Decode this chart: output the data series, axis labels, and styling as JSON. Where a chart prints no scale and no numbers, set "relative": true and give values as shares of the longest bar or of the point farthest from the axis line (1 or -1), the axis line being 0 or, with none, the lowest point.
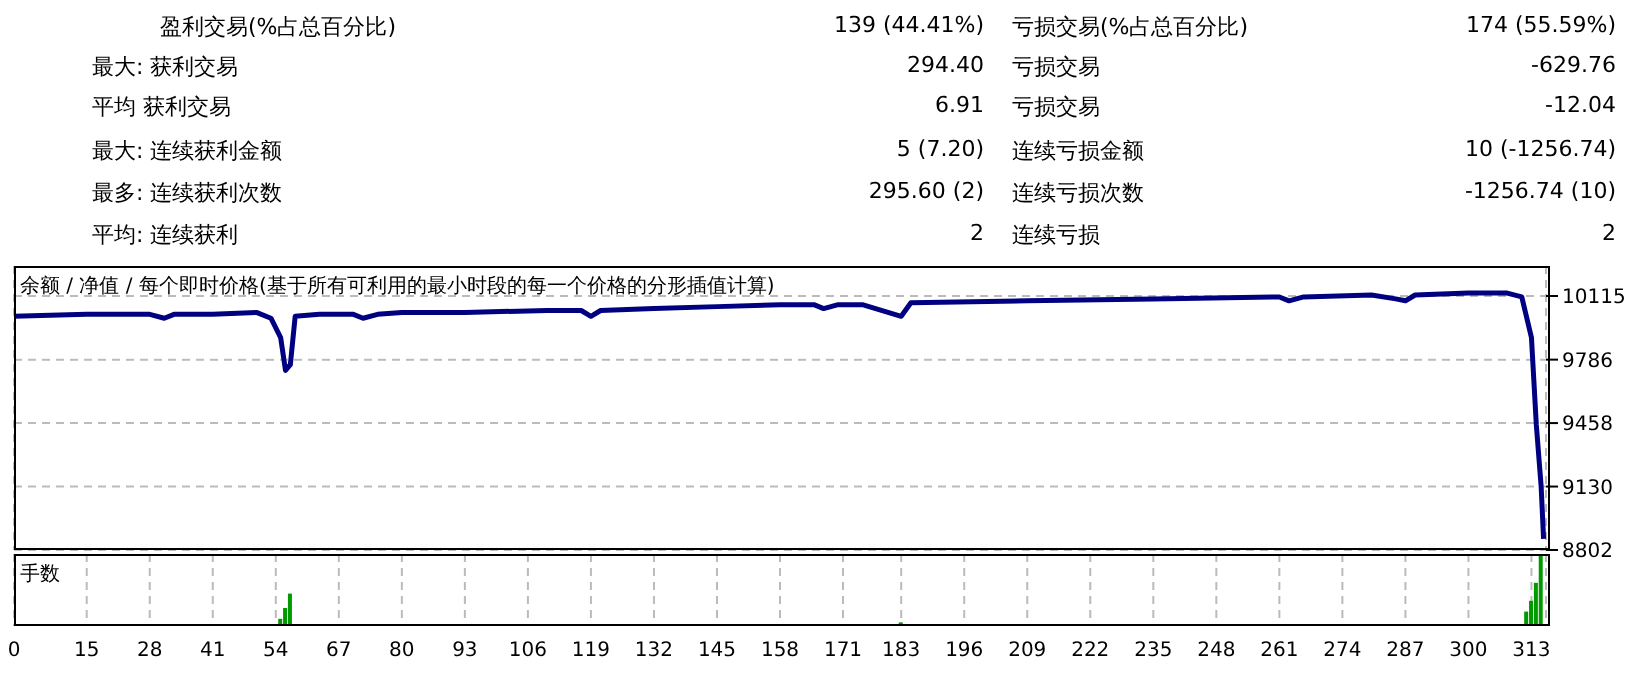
{
  "chart_data": [
    {
      "type": "line",
      "title": "余额 / 净值 / 每个即时价格(基于所有可利用的最小时段的每一个价格的分形插值计算)",
      "annotations": [
        "盈利交易(%占总百分比)",
        "139 (44.41%)",
        "亏损交易(%占总百分比)",
        "174 (55.59%)",
        "最大: 获利交易",
        "294.40",
        "亏损交易",
        "-629.76",
        "平均 获利交易",
        "6.91",
        "亏损交易",
        "-12.04",
        "最大: 连续获利金额",
        "5 (7.20)",
        "连续亏损金额",
        "10 (-1256.74)",
        "最多: 连续获利次数",
        "295.60 (2)",
        "连续亏损次数",
        "-1256.74 (10)",
        "平均: 连续获利",
        "2",
        "连续亏损",
        "2"
      ],
      "x": [
        0,
        15,
        28,
        31,
        33,
        41,
        50,
        53,
        55,
        56,
        57,
        58,
        63,
        70,
        72,
        75,
        80,
        93,
        110,
        117,
        119,
        121,
        132,
        145,
        158,
        165,
        167,
        170,
        175,
        183,
        185,
        209,
        235,
        261,
        263,
        266,
        280,
        285,
        287,
        289,
        300,
        308,
        311,
        313,
        314,
        315,
        315.5
      ],
      "series": [
        {
          "color": "#000080",
          "values": [
            10010,
            10020,
            10020,
            10000,
            10020,
            10020,
            10030,
            10000,
            9900,
            9730,
            9760,
            10010,
            10020,
            10020,
            10000,
            10020,
            10030,
            10030,
            10040,
            10040,
            10010,
            10040,
            10050,
            10060,
            10070,
            10070,
            10050,
            10070,
            10070,
            10010,
            10080,
            10090,
            10100,
            10110,
            10090,
            10110,
            10120,
            10100,
            10090,
            10120,
            10130,
            10130,
            10110,
            9900,
            9450,
            9130,
            8860
          ]
        }
      ],
      "xlim": [
        0,
        316
      ],
      "xticks": [
        0,
        15,
        28,
        41,
        54,
        67,
        80,
        93,
        106,
        119,
        132,
        145,
        158,
        171,
        183,
        196,
        209,
        222,
        235,
        248,
        261,
        274,
        287,
        300,
        313
      ],
      "ylim": [
        8802,
        10270
      ],
      "yticks": [
        8802,
        9130,
        9458,
        9786,
        10115
      ],
      "tick_labels": "y",
      "grid": true,
      "marker": "none",
      "line_style": "solid"
    },
    {
      "type": "bar",
      "title": "手数",
      "relative": true,
      "x": [
        55,
        56,
        57,
        183,
        312,
        313,
        314,
        315
      ],
      "values": [
        0.1,
        0.25,
        0.45,
        0.05,
        0.2,
        0.35,
        0.6,
        1
      ],
      "color": "#009900",
      "xlim": [
        0,
        316
      ],
      "xticks": [
        0,
        15,
        28,
        41,
        54,
        67,
        80,
        93,
        106,
        119,
        132,
        145,
        158,
        171,
        183,
        196,
        209,
        222,
        235,
        248,
        261,
        274,
        287,
        300,
        313
      ],
      "tick_labels": "x",
      "grid": "x"
    }
  ]
}
